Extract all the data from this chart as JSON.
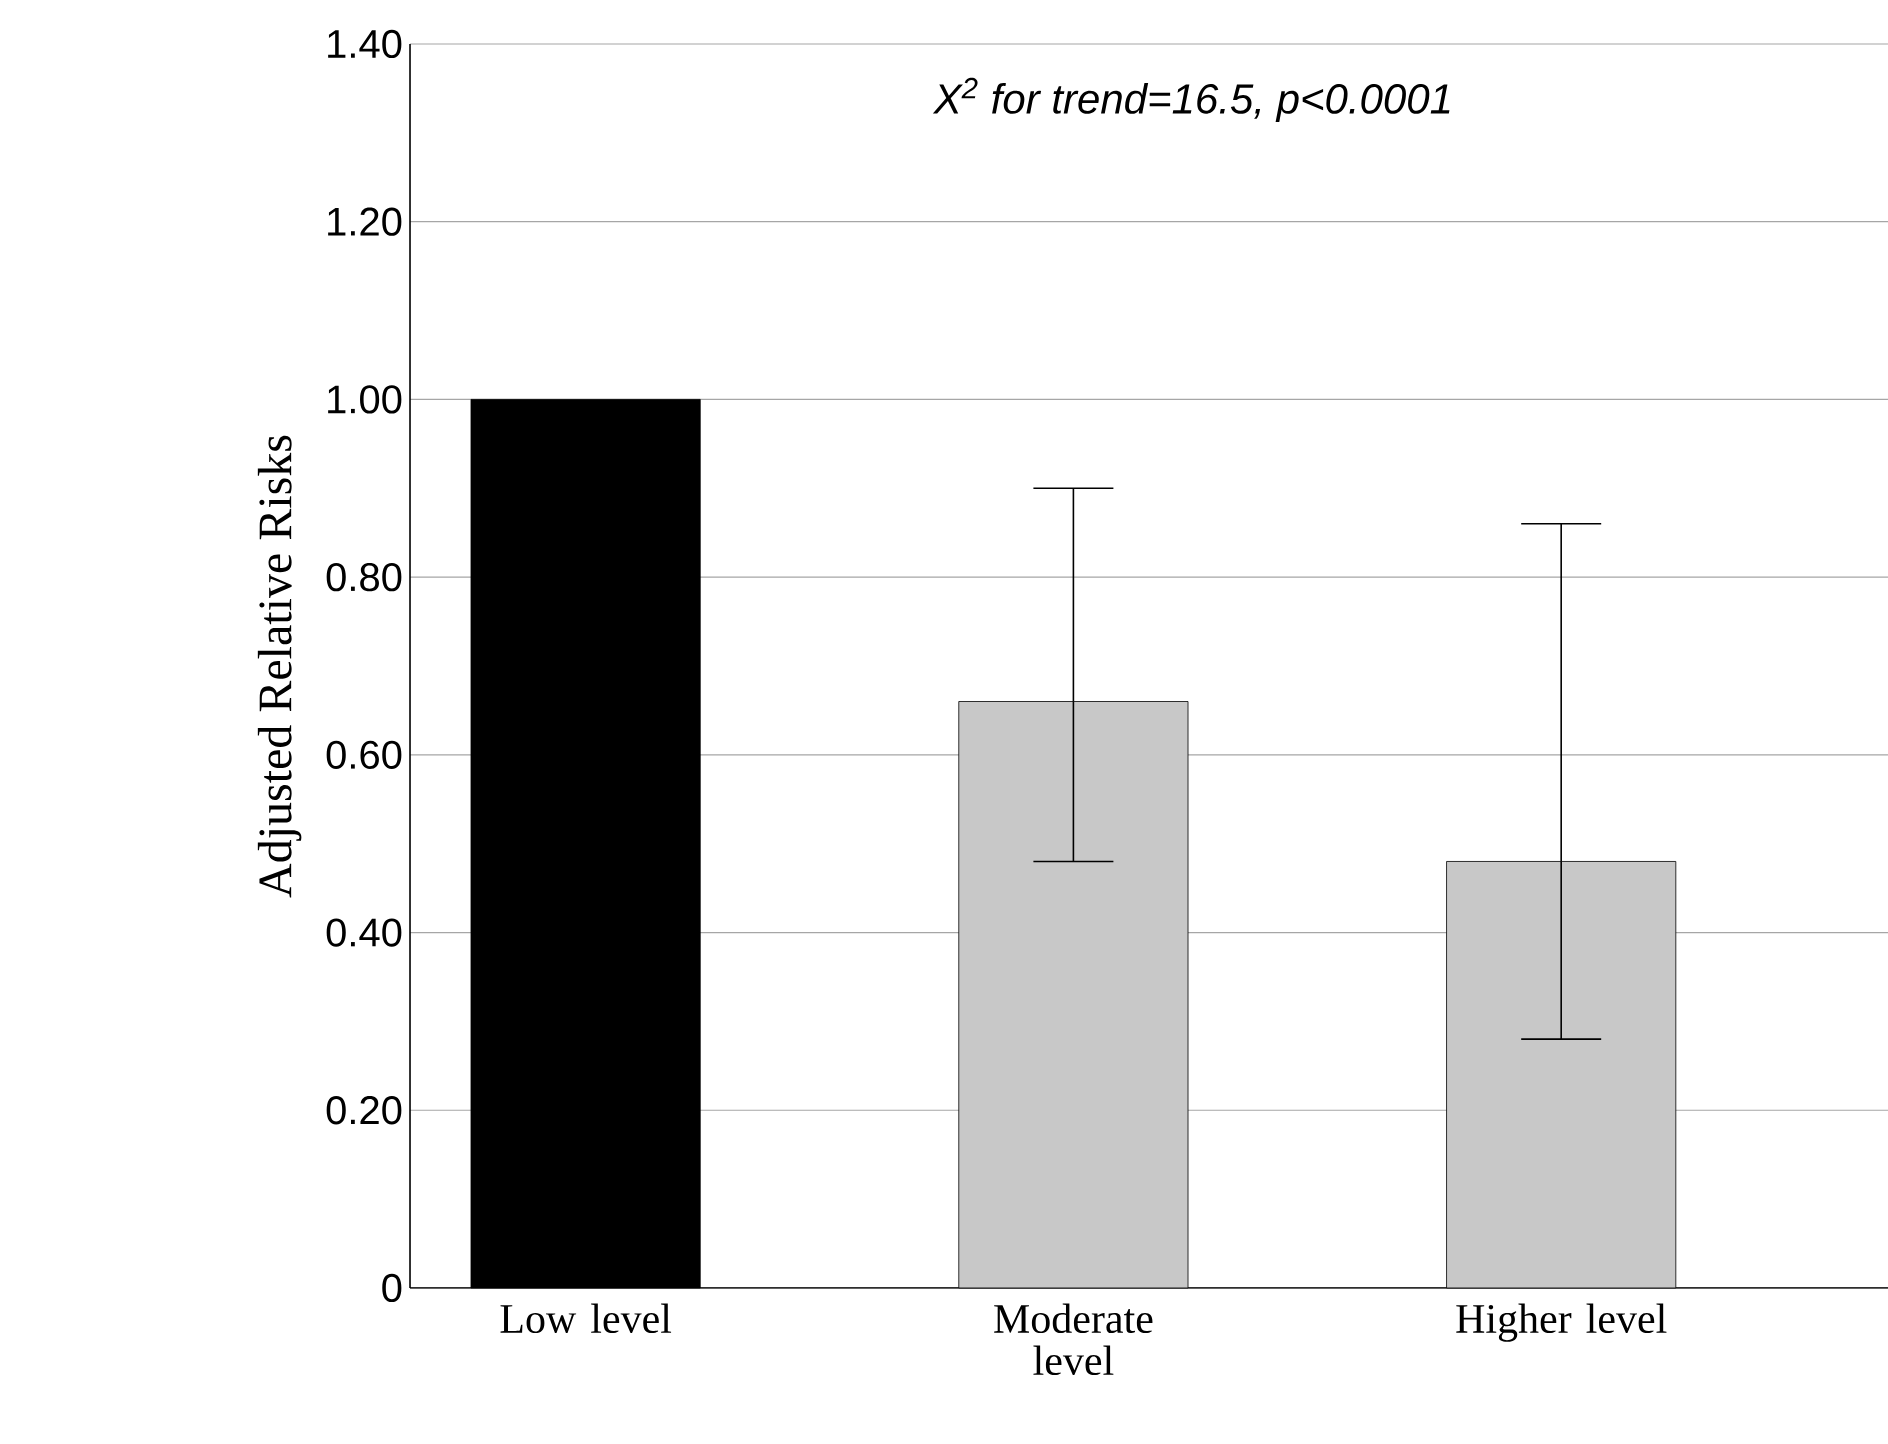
{
  "chart_data": {
    "type": "bar",
    "categories": [
      "Low level",
      "Moderate level",
      "Higher level"
    ],
    "values": [
      1.0,
      0.66,
      0.48
    ],
    "colors": [
      "#000000",
      "#c8c8c8",
      "#c8c8c8"
    ],
    "errors": [
      null,
      [
        0.48,
        0.9
      ],
      [
        0.28,
        0.86
      ]
    ],
    "ylabel": "Adjusted Relative Risks",
    "ylim": [
      0,
      1.4
    ],
    "yticks": [
      0,
      {
        "value": 0.2,
        "label": "0.20"
      },
      {
        "value": 0.4,
        "label": "0.40"
      },
      {
        "value": 0.6,
        "label": "0.60"
      },
      {
        "value": 0.8,
        "label": "0.80"
      },
      {
        "value": 1.0,
        "label": "1.00"
      },
      {
        "value": 1.2,
        "label": "1.20"
      },
      {
        "value": 1.4,
        "label": "1.40"
      }
    ],
    "grid": "y",
    "annotations": [
      "X$^{2}$ for trend=16.5, p<0.0001"
    ]
  }
}
